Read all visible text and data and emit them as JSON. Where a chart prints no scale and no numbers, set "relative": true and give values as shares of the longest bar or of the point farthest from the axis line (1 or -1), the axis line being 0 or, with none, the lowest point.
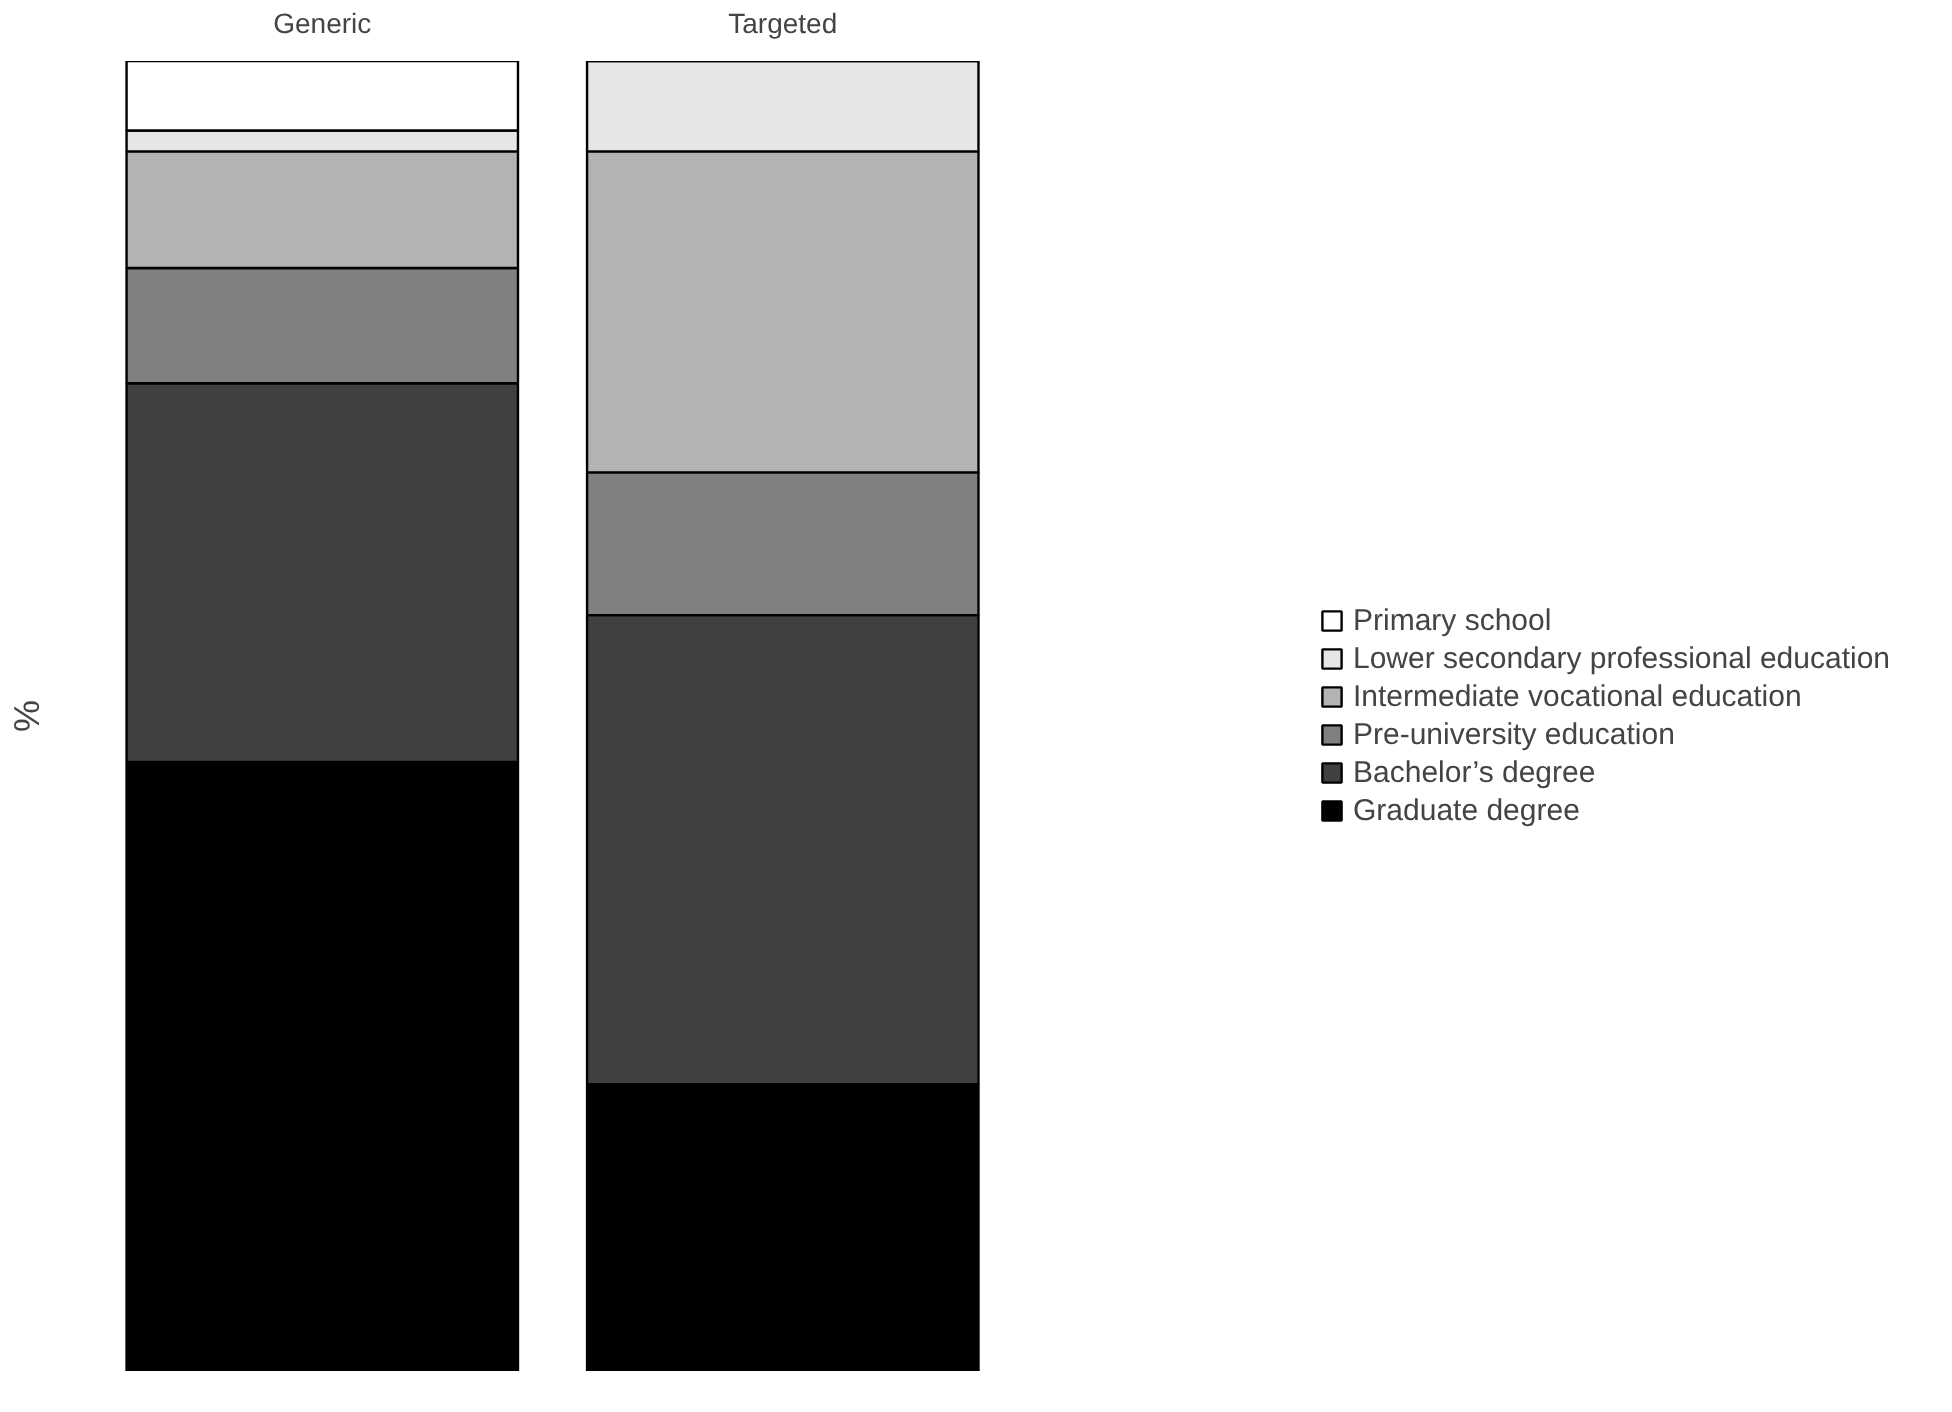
{
  "chart_data": {
    "type": "bar",
    "stacked": true,
    "relative": true,
    "ylabel": "%",
    "categories": [
      "Generic",
      "Targeted"
    ],
    "legend": "right",
    "series": [
      {
        "name": "Graduate degree",
        "color": "#000000",
        "values": [
          0.465,
          0.219
        ]
      },
      {
        "name": "Bachelor’s degree",
        "color": "#404040",
        "values": [
          0.289,
          0.358
        ]
      },
      {
        "name": "Pre-university education",
        "color": "#808080",
        "values": [
          0.088,
          0.109
        ]
      },
      {
        "name": "Intermediate vocational education",
        "color": "#b3b3b3",
        "values": [
          0.089,
          0.245
        ]
      },
      {
        "name": "Lower secondary professional education",
        "color": "#e6e6e6",
        "values": [
          0.016,
          0.069
        ]
      },
      {
        "name": "Primary school",
        "color": "#ffffff",
        "values": [
          0.053,
          0.0
        ]
      }
    ]
  }
}
